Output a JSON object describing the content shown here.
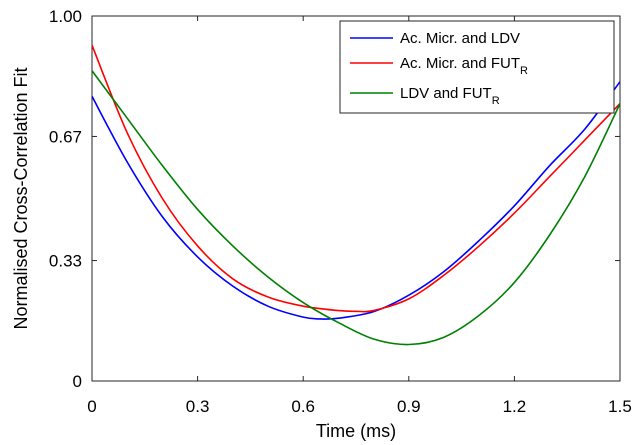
{
  "chart_data": {
    "type": "line",
    "title": "",
    "xlabel": "Time (ms)",
    "ylabel": "Normalised Cross-Correlation Fit",
    "xlim": [
      0,
      1.5
    ],
    "ylim": [
      0,
      1.0
    ],
    "x_ticks": [
      0,
      0.3,
      0.6,
      0.9,
      1.2,
      1.5
    ],
    "x_tick_labels": [
      "0",
      "0.3",
      "0.6",
      "0.9",
      "1.2",
      "1.5"
    ],
    "y_ticks": [
      0,
      0.33,
      0.67,
      1.0
    ],
    "y_tick_labels": [
      "0",
      "0.33",
      "0.67",
      "1.00"
    ],
    "grid": false,
    "legend_position": "top-right",
    "series": [
      {
        "name": "Ac. Micr. and LDV",
        "name_main": "Ac. Micr. and LDV",
        "name_sub": "",
        "color": "#0000ff",
        "x": [
          0,
          0.1,
          0.2,
          0.3,
          0.4,
          0.5,
          0.6,
          0.65,
          0.7,
          0.8,
          0.9,
          1.0,
          1.1,
          1.2,
          1.3,
          1.4,
          1.5
        ],
        "y": [
          0.78,
          0.6,
          0.45,
          0.34,
          0.26,
          0.205,
          0.175,
          0.17,
          0.172,
          0.19,
          0.235,
          0.3,
          0.385,
          0.48,
          0.59,
          0.69,
          0.82
        ]
      },
      {
        "name": "Ac. Micr. and FUT_R",
        "name_main": "Ac. Micr. and FUT",
        "name_sub": "R",
        "color": "#ff0000",
        "x": [
          0,
          0.1,
          0.2,
          0.3,
          0.4,
          0.5,
          0.6,
          0.7,
          0.75,
          0.8,
          0.9,
          1.0,
          1.1,
          1.2,
          1.3,
          1.4,
          1.5
        ],
        "y": [
          0.92,
          0.68,
          0.5,
          0.37,
          0.28,
          0.23,
          0.205,
          0.193,
          0.191,
          0.193,
          0.225,
          0.29,
          0.37,
          0.46,
          0.56,
          0.66,
          0.76
        ]
      },
      {
        "name": "LDV and FUT_R",
        "name_main": "LDV and FUT",
        "name_sub": "R",
        "color": "#008000",
        "x": [
          0,
          0.1,
          0.2,
          0.3,
          0.4,
          0.5,
          0.6,
          0.7,
          0.8,
          0.9,
          1.0,
          1.1,
          1.2,
          1.3,
          1.4,
          1.5
        ],
        "y": [
          0.85,
          0.72,
          0.59,
          0.47,
          0.37,
          0.285,
          0.215,
          0.16,
          0.115,
          0.1,
          0.12,
          0.18,
          0.27,
          0.4,
          0.56,
          0.76
        ]
      }
    ]
  }
}
